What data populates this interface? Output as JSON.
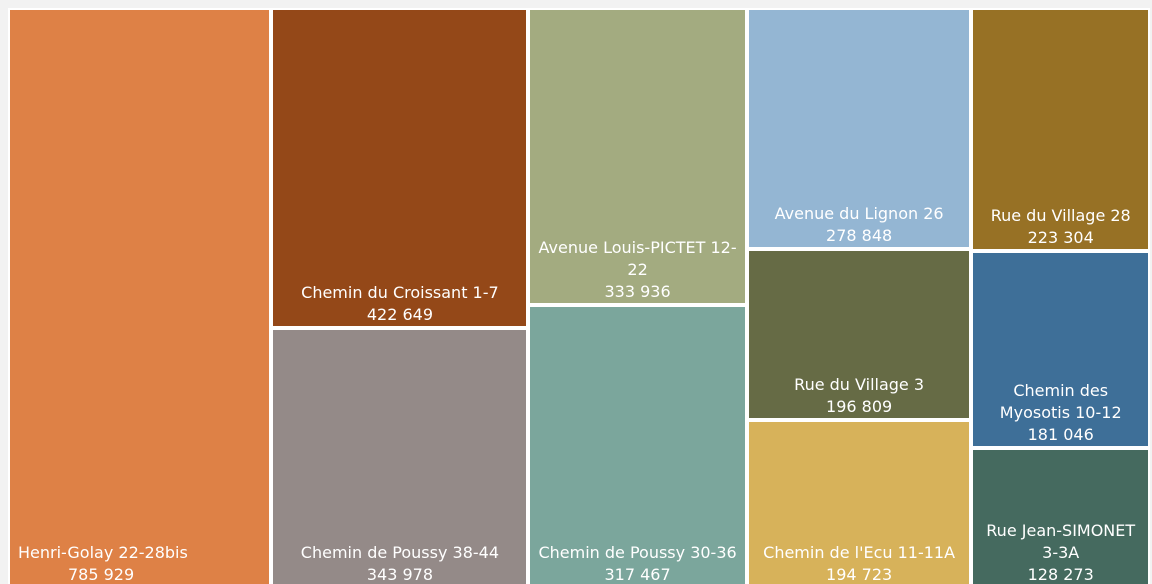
{
  "chart_data": {
    "type": "treemap",
    "categories": [
      "Henri-Golay 22-28bis",
      "Chemin du Croissant 1-7",
      "Chemin de Poussy 38-44",
      "Avenue Louis-PICTET 12-22",
      "Chemin de Poussy 30-36",
      "Avenue du Lignon 26",
      "Rue du Village 3",
      "Chemin de l'Ecu 11-11A",
      "Rue du Village 28",
      "Chemin des Myosotis 10-12",
      "Rue Jean-SIMONET 3-3A"
    ],
    "values": [
      785929,
      422649,
      343978,
      333936,
      317467,
      278848,
      196809,
      194723,
      223304,
      181046,
      128273
    ],
    "value_labels": [
      "785 929",
      "422 649",
      "343 978",
      "333 936",
      "317 467",
      "278 848",
      "196 809",
      "194 723",
      "223 304",
      "181 046",
      "128 273"
    ],
    "colors": [
      "#de8146",
      "#944818",
      "#948a88",
      "#a3ab80",
      "#7ba69c",
      "#94b6d3",
      "#666b45",
      "#d7b25a",
      "#977125",
      "#3e6f98",
      "#456a5f"
    ]
  }
}
